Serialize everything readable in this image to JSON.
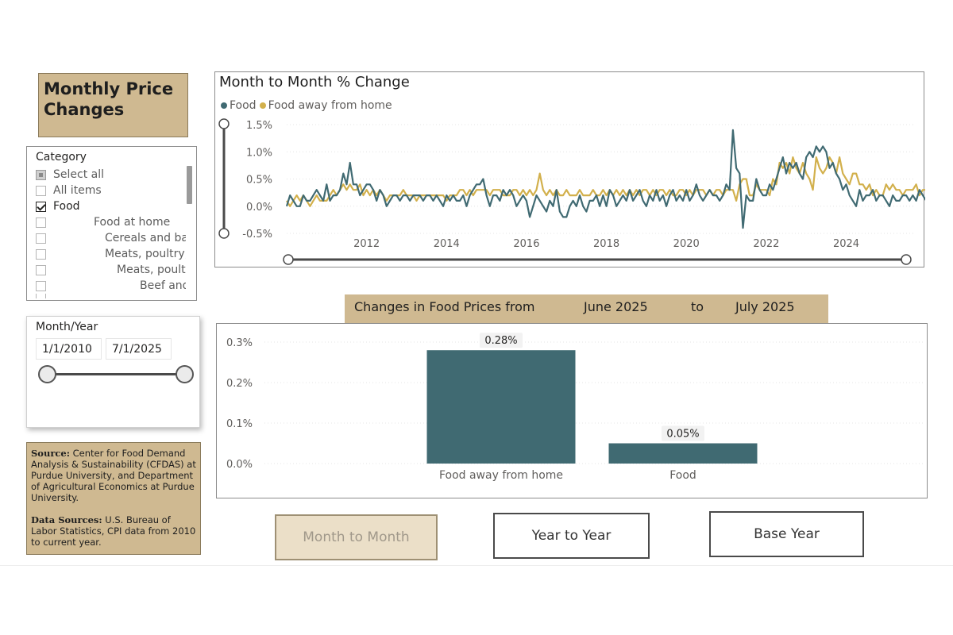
{
  "page_title": "Monthly Price Changes",
  "category_slicer": {
    "header": "Category",
    "items": [
      {
        "label": "Select all",
        "state": "partial",
        "indent": 0
      },
      {
        "label": "All items",
        "state": "unchecked",
        "indent": 0
      },
      {
        "label": "Food",
        "state": "checked",
        "indent": 1
      },
      {
        "label": "Food at home",
        "state": "unchecked",
        "indent": 2
      },
      {
        "label": "Cereals and bak...",
        "state": "unchecked",
        "indent": 3
      },
      {
        "label": "Meats, poultry, f...",
        "state": "unchecked",
        "indent": 3
      },
      {
        "label": "Meats, poultry...",
        "state": "unchecked",
        "indent": 4
      },
      {
        "label": "Beef and ...",
        "state": "unchecked",
        "indent": 5
      }
    ]
  },
  "date_slicer": {
    "header": "Month/Year",
    "start": "1/1/2010",
    "end": "7/1/2025"
  },
  "source": {
    "source_label": "Source:",
    "source_text": " Center for Food Demand Analysis & Sustainability (CFDAS) at Purdue University, and Department of Agricultural Economics at Purdue University.",
    "data_label": "Data Sources:",
    "data_text": " U.S. Bureau of Labor Statistics, CPI data from 2010 to current year."
  },
  "banner": {
    "prefix": "Changes in Food Prices from",
    "from": "June 2025",
    "to_word": "to",
    "to": "July 2025"
  },
  "buttons": {
    "month_to_month": "Month to Month",
    "year_to_year": "Year to Year",
    "base_year": "Base Year"
  },
  "colors": {
    "food": "#406a72",
    "food_away": "#d2b04c",
    "accent_gold": "#cfb991"
  },
  "chart_data": [
    {
      "type": "line",
      "title": "Month to Month % Change",
      "legend_position": "top-left",
      "x_range": [
        "2010-01",
        "2025-07"
      ],
      "x_ticks": [
        "2012",
        "2014",
        "2016",
        "2018",
        "2020",
        "2022",
        "2024"
      ],
      "y_ticks": [
        "1.5%",
        "1.0%",
        "0.5%",
        "0.0%",
        "-0.5%"
      ],
      "ylim": [
        -0.5,
        1.5
      ],
      "grid": true,
      "series": [
        {
          "name": "Food",
          "x_start": "2010-01",
          "values": [
            0.0,
            0.2,
            0.1,
            0.0,
            0.0,
            0.2,
            0.1,
            0.1,
            0.2,
            0.3,
            0.2,
            0.1,
            0.4,
            0.1,
            0.2,
            0.2,
            0.3,
            0.6,
            0.4,
            0.8,
            0.4,
            0.4,
            0.2,
            0.3,
            0.4,
            0.4,
            0.3,
            0.1,
            0.3,
            0.2,
            0.0,
            0.1,
            0.2,
            0.2,
            0.1,
            0.2,
            0.2,
            0.1,
            0.2,
            0.2,
            0.2,
            0.1,
            0.2,
            0.2,
            0.1,
            0.2,
            0.1,
            0.0,
            0.2,
            0.1,
            0.2,
            0.1,
            0.1,
            0.2,
            0.0,
            0.2,
            0.3,
            0.4,
            0.4,
            0.5,
            0.2,
            0.0,
            0.2,
            0.2,
            0.1,
            0.3,
            0.2,
            0.3,
            0.2,
            0.0,
            0.1,
            0.2,
            0.1,
            -0.2,
            0.0,
            0.2,
            0.1,
            0.0,
            -0.1,
            0.1,
            0.0,
            0.3,
            -0.1,
            -0.2,
            -0.2,
            0.0,
            0.1,
            0.0,
            0.2,
            0.0,
            -0.1,
            0.1,
            0.1,
            0.2,
            0.0,
            0.2,
            0.0,
            0.3,
            0.2,
            0.0,
            0.1,
            0.2,
            0.1,
            0.3,
            0.1,
            0.2,
            0.3,
            0.1,
            0.0,
            0.2,
            0.1,
            0.3,
            0.1,
            0.2,
            0.0,
            0.2,
            0.3,
            0.1,
            0.2,
            0.1,
            0.3,
            0.1,
            0.2,
            0.4,
            0.2,
            0.1,
            0.2,
            0.3,
            0.2,
            0.2,
            0.1,
            0.2,
            0.4,
            0.3,
            1.4,
            0.7,
            0.6,
            -0.4,
            0.2,
            0.1,
            0.1,
            0.5,
            0.3,
            0.2,
            0.2,
            0.4,
            0.3,
            0.5,
            0.7,
            0.9,
            0.6,
            0.8,
            0.7,
            0.8,
            0.6,
            0.5,
            0.9,
            1.0,
            0.9,
            1.1,
            1.0,
            1.1,
            1.0,
            0.7,
            0.8,
            0.6,
            0.5,
            0.3,
            0.4,
            0.2,
            0.1,
            0.0,
            0.3,
            0.1,
            0.2,
            0.2,
            0.3,
            0.1,
            0.2,
            0.2,
            0.1,
            0.0,
            0.2,
            0.1,
            0.1,
            0.2,
            0.2,
            0.1,
            0.2,
            0.1,
            0.3,
            0.2,
            0.1,
            0.3,
            0.4,
            0.2,
            0.1,
            0.3,
            0.2,
            0.4,
            0.3,
            0.4,
            -0.1,
            0.4,
            0.3,
            0.1
          ]
        },
        {
          "name": "Food away from home",
          "x_start": "2010-01",
          "values": [
            0.1,
            0.0,
            0.1,
            0.2,
            0.1,
            0.2,
            0.1,
            0.0,
            0.1,
            0.2,
            0.1,
            0.1,
            0.1,
            0.2,
            0.3,
            0.2,
            0.3,
            0.4,
            0.3,
            0.4,
            0.3,
            0.3,
            0.4,
            0.2,
            0.3,
            0.2,
            0.3,
            0.2,
            0.3,
            0.2,
            0.1,
            0.2,
            0.2,
            0.2,
            0.2,
            0.3,
            0.2,
            0.2,
            0.2,
            0.1,
            0.2,
            0.2,
            0.2,
            0.2,
            0.2,
            0.2,
            0.2,
            0.2,
            0.1,
            0.2,
            0.2,
            0.2,
            0.3,
            0.3,
            0.2,
            0.3,
            0.2,
            0.3,
            0.3,
            0.3,
            0.3,
            0.2,
            0.3,
            0.3,
            0.3,
            0.2,
            0.2,
            0.2,
            0.3,
            0.3,
            0.2,
            0.3,
            0.2,
            0.3,
            0.2,
            0.3,
            0.6,
            0.3,
            0.2,
            0.3,
            0.2,
            0.3,
            0.2,
            0.2,
            0.3,
            0.2,
            0.2,
            0.2,
            0.3,
            0.2,
            0.2,
            0.2,
            0.3,
            0.2,
            0.2,
            0.3,
            0.2,
            0.3,
            0.2,
            0.3,
            0.2,
            0.3,
            0.2,
            0.3,
            0.2,
            0.3,
            0.2,
            0.3,
            0.3,
            0.2,
            0.3,
            0.2,
            0.3,
            0.3,
            0.2,
            0.3,
            0.2,
            0.2,
            0.3,
            0.3,
            0.2,
            0.3,
            0.2,
            0.3,
            0.3,
            0.3,
            0.2,
            0.3,
            0.2,
            0.3,
            0.3,
            0.2,
            0.3,
            0.3,
            0.3,
            0.1,
            0.4,
            0.5,
            0.5,
            0.2,
            0.2,
            0.4,
            0.3,
            0.3,
            0.3,
            0.2,
            0.5,
            0.4,
            0.8,
            0.7,
            0.8,
            0.6,
            0.9,
            0.7,
            0.6,
            0.8,
            0.6,
            0.5,
            0.3,
            0.9,
            0.7,
            0.6,
            0.7,
            0.9,
            0.8,
            0.6,
            0.9,
            0.6,
            0.5,
            0.4,
            0.6,
            0.6,
            0.4,
            0.4,
            0.3,
            0.4,
            0.2,
            0.3,
            0.2,
            0.2,
            0.4,
            0.3,
            0.4,
            0.3,
            0.3,
            0.2,
            0.3,
            0.3,
            0.3,
            0.4,
            0.2,
            0.3,
            0.3,
            0.3,
            0.2,
            0.3,
            0.3,
            0.2,
            0.3,
            0.3,
            0.3,
            0.2,
            0.4,
            0.3,
            0.4,
            0.3
          ]
        }
      ]
    },
    {
      "type": "bar",
      "categories": [
        "Food away from home",
        "Food"
      ],
      "values": [
        0.28,
        0.05
      ],
      "data_labels": [
        "0.28%",
        "0.05%"
      ],
      "y_ticks": [
        "0.3%",
        "0.2%",
        "0.1%",
        "0.0%"
      ],
      "ylim": [
        0,
        0.3
      ],
      "grid": true
    }
  ]
}
